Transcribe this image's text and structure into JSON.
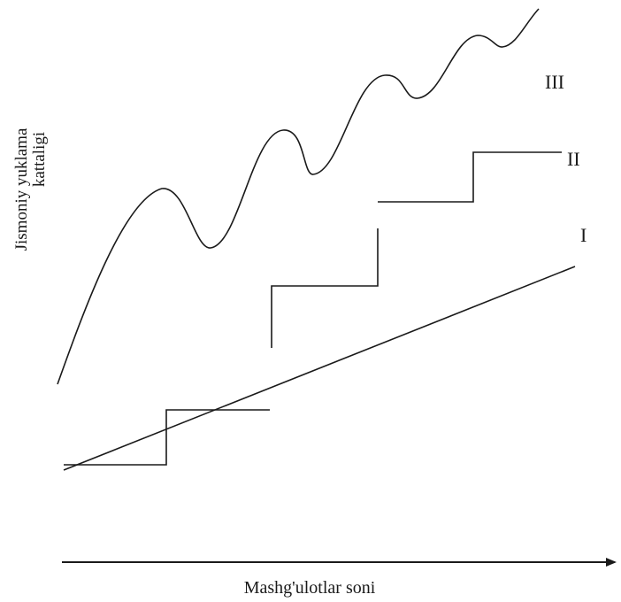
{
  "figure": {
    "x_axis_label": "Mashg'ulotlar soni",
    "y_axis_label_line1": "Jismoniy yuklama",
    "y_axis_label_line2": "kattaligi",
    "curves": [
      {
        "id": "I",
        "label": "I",
        "description": "linear increase"
      },
      {
        "id": "II",
        "label": "II",
        "description": "step increase"
      },
      {
        "id": "III",
        "label": "III",
        "description": "wave increase"
      }
    ]
  },
  "colors": {
    "line": "#1a1a1a",
    "background": "#ffffff"
  }
}
